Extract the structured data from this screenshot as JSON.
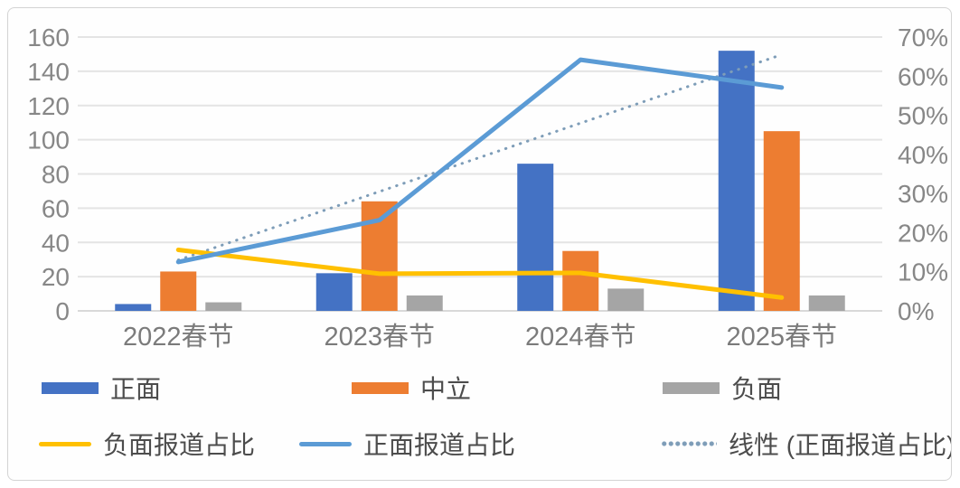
{
  "chart_data": {
    "type": "combo-bar-line",
    "title": "",
    "categories": [
      "2022春节",
      "2023春节",
      "2024春节",
      "2025春节"
    ],
    "bar_series": [
      {
        "name": "正面",
        "color": "#4472C4",
        "values": [
          4,
          22,
          86,
          152
        ]
      },
      {
        "name": "中立",
        "color": "#ED7D31",
        "values": [
          23,
          64,
          35,
          105
        ]
      },
      {
        "name": "负面",
        "color": "#A5A5A5",
        "values": [
          5,
          9,
          13,
          9
        ]
      }
    ],
    "line_series": [
      {
        "name": "负面报道占比",
        "color": "#FFC000",
        "style": "solid",
        "axis": "right",
        "values": [
          15.6,
          9.5,
          9.7,
          3.4
        ]
      },
      {
        "name": "正面报道占比",
        "color": "#5B9BD5",
        "style": "solid",
        "axis": "right",
        "values": [
          12.5,
          23.2,
          64.2,
          57.1
        ]
      },
      {
        "name": "线性 (正面报道占比)",
        "color": "#7E9DB8",
        "style": "dotted",
        "axis": "right",
        "values": [
          13.0,
          30.5,
          48.0,
          65.5
        ]
      }
    ],
    "left_axis": {
      "min": 0,
      "max": 160,
      "step": 20,
      "ticks": [
        "0",
        "20",
        "40",
        "60",
        "80",
        "100",
        "120",
        "140",
        "160"
      ]
    },
    "right_axis": {
      "min": 0,
      "max": 70,
      "step": 10,
      "ticks": [
        "0%",
        "10%",
        "20%",
        "30%",
        "40%",
        "50%",
        "60%",
        "70%"
      ]
    },
    "grid": "horizontal",
    "legend_position": "bottom"
  },
  "colors": {
    "grid_line": "#e4e4e4",
    "axis_line": "#d9d9d9",
    "tick_text": "#878787",
    "category_text": "#7b7b7b",
    "legend_text": "#4c4c4c",
    "card_border": "#d4d4d4"
  }
}
